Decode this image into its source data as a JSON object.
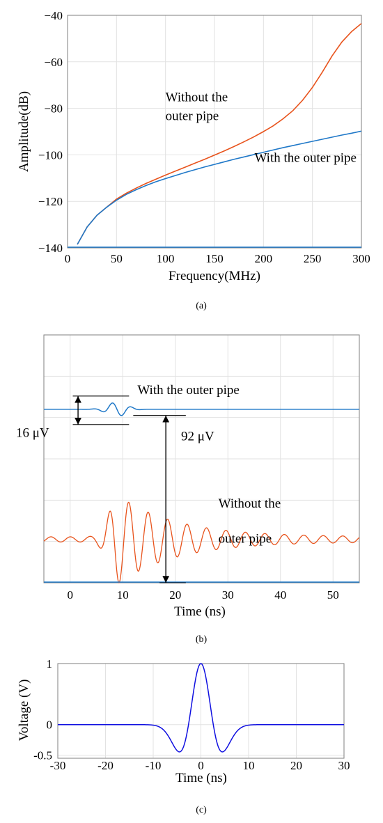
{
  "chart_data": [
    {
      "id": "a",
      "type": "line",
      "subplot_label": "(a)",
      "xlabel": "Frequency(MHz)",
      "ylabel": "Amplitude(dB)",
      "xlim": [
        0,
        300
      ],
      "ylim": [
        -140,
        -40
      ],
      "xticks": [
        0,
        50,
        100,
        150,
        200,
        250,
        300
      ],
      "yticks": [
        -140,
        -120,
        -100,
        -80,
        -60,
        -40
      ],
      "grid": true,
      "colors": {
        "without": "#e8531c",
        "with": "#1f78c8"
      },
      "series": [
        {
          "key": "without",
          "values_x": [
            10,
            20,
            30,
            40,
            50,
            60,
            70,
            80,
            90,
            100,
            110,
            120,
            130,
            140,
            150,
            160,
            170,
            180,
            190,
            200,
            210,
            220,
            230,
            240,
            250,
            260,
            270,
            280,
            290,
            300
          ],
          "values_y": [
            -138.5,
            -131,
            -126,
            -122.5,
            -119,
            -116.5,
            -114.3,
            -112.3,
            -110.5,
            -108.7,
            -107,
            -105.3,
            -103.6,
            -101.9,
            -100.1,
            -98.3,
            -96.4,
            -94.4,
            -92.3,
            -90,
            -87.5,
            -84.5,
            -81,
            -76.5,
            -71,
            -64.5,
            -57.5,
            -51.5,
            -47,
            -43.5
          ]
        },
        {
          "key": "with",
          "values_x": [
            10,
            20,
            30,
            40,
            50,
            60,
            70,
            80,
            90,
            100,
            110,
            120,
            130,
            140,
            150,
            160,
            170,
            180,
            190,
            200,
            210,
            220,
            230,
            240,
            250,
            260,
            270,
            280,
            290,
            300
          ],
          "values_y": [
            -138.5,
            -131,
            -126,
            -122.5,
            -119.5,
            -117,
            -115,
            -113.2,
            -111.6,
            -110.2,
            -108.9,
            -107.6,
            -106.4,
            -105.2,
            -104.1,
            -103,
            -101.9,
            -100.9,
            -99.9,
            -98.9,
            -97.9,
            -96.9,
            -96,
            -95.1,
            -94.2,
            -93.3,
            -92.4,
            -91.5,
            -90.7,
            -89.8
          ]
        }
      ],
      "annotations": [
        {
          "key": "without_line1",
          "text": "Without the",
          "x": 100,
          "y": -77,
          "anchor": "start"
        },
        {
          "key": "without_line2",
          "text": "outer pipe",
          "x": 100,
          "y": -85,
          "anchor": "start"
        },
        {
          "key": "with",
          "text": "With the outer pipe",
          "x": 295,
          "y": -103,
          "anchor": "end"
        }
      ]
    },
    {
      "id": "b",
      "type": "line",
      "subplot_label": "(b)",
      "xlabel": "Time (ns)",
      "ylabel": "",
      "xlim": [
        -5,
        55
      ],
      "ylim": [
        0,
        6
      ],
      "xticks": [
        0,
        10,
        20,
        30,
        40,
        50
      ],
      "xtick_labels": [
        "0",
        "10",
        "20",
        "30",
        "40",
        "50"
      ],
      "yticks": [
        1,
        2,
        3,
        4,
        5
      ],
      "show_ytick_labels": false,
      "grid": true,
      "colors": {
        "without": "#e8531c",
        "with": "#1f78c8",
        "annotation": "#000000"
      },
      "series": [
        {
          "key": "with",
          "baseline": 4.2,
          "amplitude": 0.17,
          "period_ns": 3.7,
          "peak_time_ns": 8.9,
          "envelope_sigma_ns": 2.6,
          "floor": 0.0
        },
        {
          "key": "without",
          "baseline": 1.05,
          "amplitude": 1.05,
          "period_ns": 3.7,
          "peak_time_ns": 9.3,
          "rise_ns": 2.6,
          "decay_ns": 11,
          "floor": 0.06
        }
      ],
      "markers": [
        {
          "key": "with_top",
          "y": 4.52,
          "x1": 0.5,
          "x2": 11.2
        },
        {
          "key": "with_bottom",
          "y": 3.83,
          "x1": 0.5,
          "x2": 11.2
        },
        {
          "key": "without_top",
          "y": 4.05,
          "x1": 12.0,
          "x2": 22.0
        },
        {
          "key": "without_bottom",
          "y": 0.0,
          "x1": 17.0,
          "x2": 22.0
        }
      ],
      "arrows": [
        {
          "key": "with_arrow",
          "x": 1.5,
          "y1": 4.52,
          "y2": 3.83
        },
        {
          "key": "without_arrow",
          "x": 18.2,
          "y1": 4.05,
          "y2": 0.0
        }
      ],
      "annotations": [
        {
          "key": "with",
          "text": "With the outer pipe",
          "x": 12.8,
          "y": 4.57,
          "anchor": "start"
        },
        {
          "key": "with_amp",
          "text": "16 μV",
          "x": -10.3,
          "y": 3.53,
          "anchor": "start"
        },
        {
          "key": "without_amp",
          "text": "92 μV",
          "x": 21.1,
          "y": 3.45,
          "anchor": "start"
        },
        {
          "key": "without_line1",
          "text": "Without the",
          "x": 28.2,
          "y": 1.82,
          "anchor": "start"
        },
        {
          "key": "without_line2",
          "text": "outer pipe",
          "x": 28.2,
          "y": 0.97,
          "anchor": "start"
        }
      ]
    },
    {
      "id": "c",
      "type": "line",
      "subplot_label": "(c)",
      "xlabel": "Time (ns)",
      "ylabel": "Voltage (V)",
      "xlim": [
        -30,
        30
      ],
      "ylim": [
        -0.55,
        1
      ],
      "xticks": [
        -30,
        -20,
        -10,
        0,
        10,
        20,
        30
      ],
      "yticks": [
        -0.5,
        0,
        1
      ],
      "ytick_labels": [
        "-0.5",
        "0",
        "1"
      ],
      "grid": true,
      "colors": {
        "pulse": "#1010e0"
      },
      "series": [
        {
          "key": "pulse",
          "shape": "mexican-hat",
          "peak": 1,
          "center_ns": 0,
          "width_ns": 2.6
        }
      ]
    }
  ]
}
